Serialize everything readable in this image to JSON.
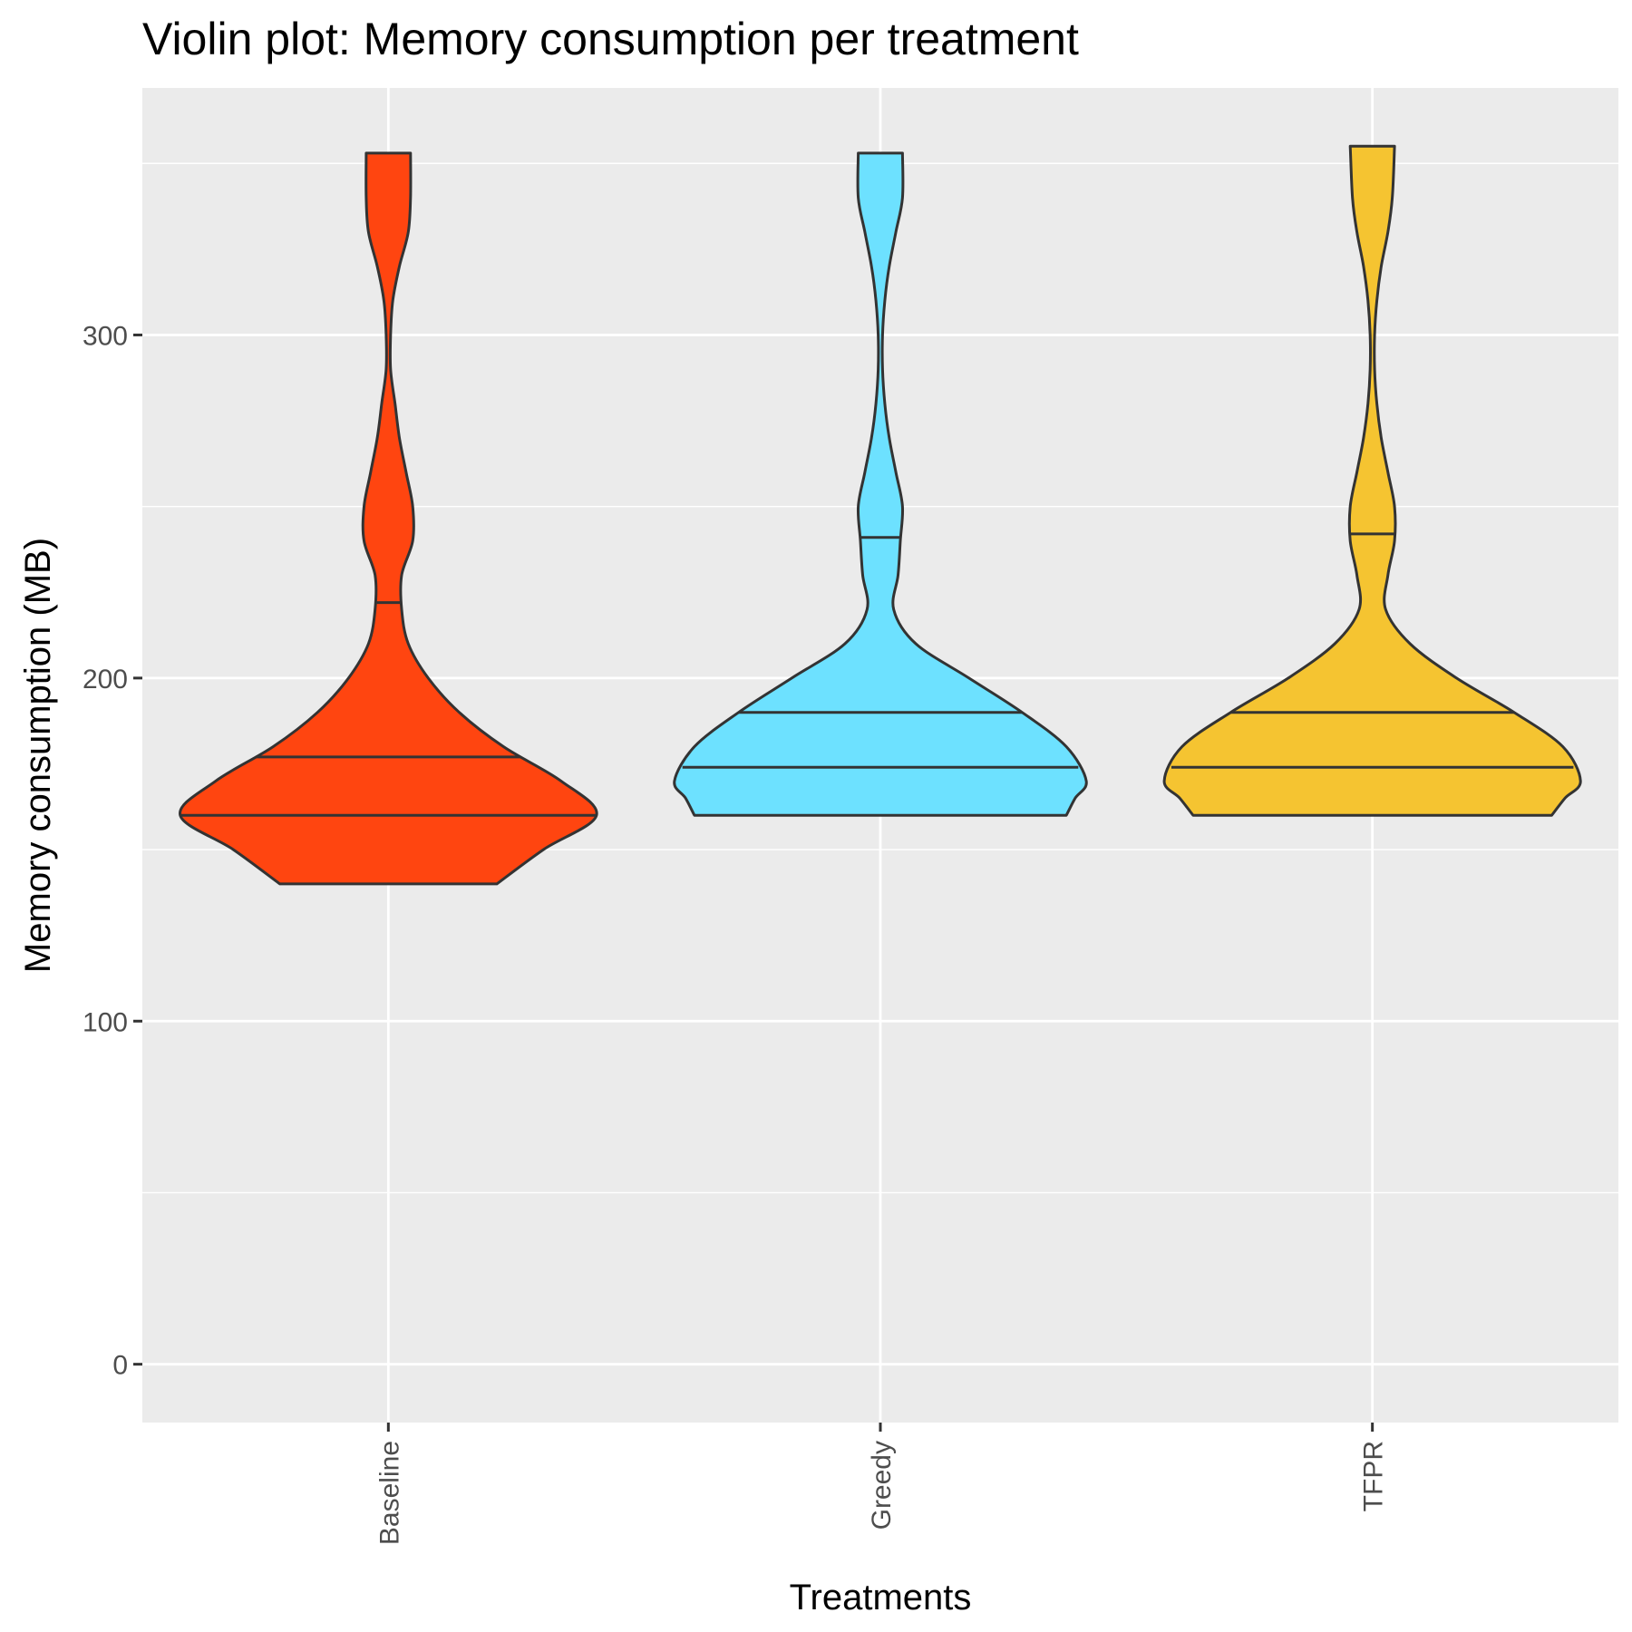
{
  "chart_data": {
    "type": "violin",
    "title": "Violin plot: Memory consumption per treatment",
    "xlabel": "Treatments",
    "ylabel": "Memory consumption (MB)",
    "ylim": [
      -17,
      372
    ],
    "yticks": [
      0,
      100,
      200,
      300
    ],
    "yticks_labels": [
      "0",
      "100",
      "200",
      "300"
    ],
    "grid": true,
    "legend": "none",
    "categories": [
      "Baseline",
      "Greedy",
      "TFPR"
    ],
    "series": [
      {
        "category": "Baseline",
        "color": "#FF4510",
        "min": 140,
        "max": 353,
        "quantiles": [
          160,
          177,
          222
        ],
        "density": [
          [
            140,
            0.49
          ],
          [
            150,
            0.7
          ],
          [
            160,
            0.94
          ],
          [
            170,
            0.78
          ],
          [
            180,
            0.52
          ],
          [
            190,
            0.32
          ],
          [
            200,
            0.18
          ],
          [
            210,
            0.09
          ],
          [
            220,
            0.06
          ],
          [
            230,
            0.06
          ],
          [
            240,
            0.11
          ],
          [
            250,
            0.11
          ],
          [
            260,
            0.08
          ],
          [
            270,
            0.05
          ],
          [
            280,
            0.03
          ],
          [
            290,
            0.01
          ],
          [
            300,
            0.01
          ],
          [
            310,
            0.02
          ],
          [
            320,
            0.05
          ],
          [
            330,
            0.09
          ],
          [
            340,
            0.1
          ],
          [
            353,
            0.1
          ]
        ]
      },
      {
        "category": "Greedy",
        "color": "#6DE1FF",
        "min": 160,
        "max": 353,
        "quantiles": [
          174,
          190,
          241
        ],
        "density": [
          [
            160,
            0.84
          ],
          [
            165,
            0.88
          ],
          [
            170,
            0.93
          ],
          [
            180,
            0.84
          ],
          [
            190,
            0.64
          ],
          [
            200,
            0.4
          ],
          [
            210,
            0.16
          ],
          [
            220,
            0.06
          ],
          [
            230,
            0.08
          ],
          [
            240,
            0.09
          ],
          [
            250,
            0.1
          ],
          [
            260,
            0.07
          ],
          [
            270,
            0.04
          ],
          [
            280,
            0.02
          ],
          [
            290,
            0.01
          ],
          [
            300,
            0.01
          ],
          [
            310,
            0.02
          ],
          [
            320,
            0.04
          ],
          [
            330,
            0.07
          ],
          [
            340,
            0.1
          ],
          [
            353,
            0.1
          ]
        ]
      },
      {
        "category": "TFPR",
        "color": "#F5C431",
        "min": 160,
        "max": 355,
        "quantiles": [
          174,
          190,
          242
        ],
        "density": [
          [
            160,
            0.81
          ],
          [
            165,
            0.87
          ],
          [
            170,
            0.94
          ],
          [
            180,
            0.86
          ],
          [
            190,
            0.64
          ],
          [
            200,
            0.38
          ],
          [
            210,
            0.17
          ],
          [
            220,
            0.06
          ],
          [
            230,
            0.07
          ],
          [
            240,
            0.1
          ],
          [
            250,
            0.1
          ],
          [
            260,
            0.07
          ],
          [
            270,
            0.04
          ],
          [
            280,
            0.02
          ],
          [
            290,
            0.01
          ],
          [
            300,
            0.01
          ],
          [
            310,
            0.02
          ],
          [
            320,
            0.04
          ],
          [
            330,
            0.07
          ],
          [
            340,
            0.09
          ],
          [
            355,
            0.1
          ]
        ]
      }
    ]
  }
}
